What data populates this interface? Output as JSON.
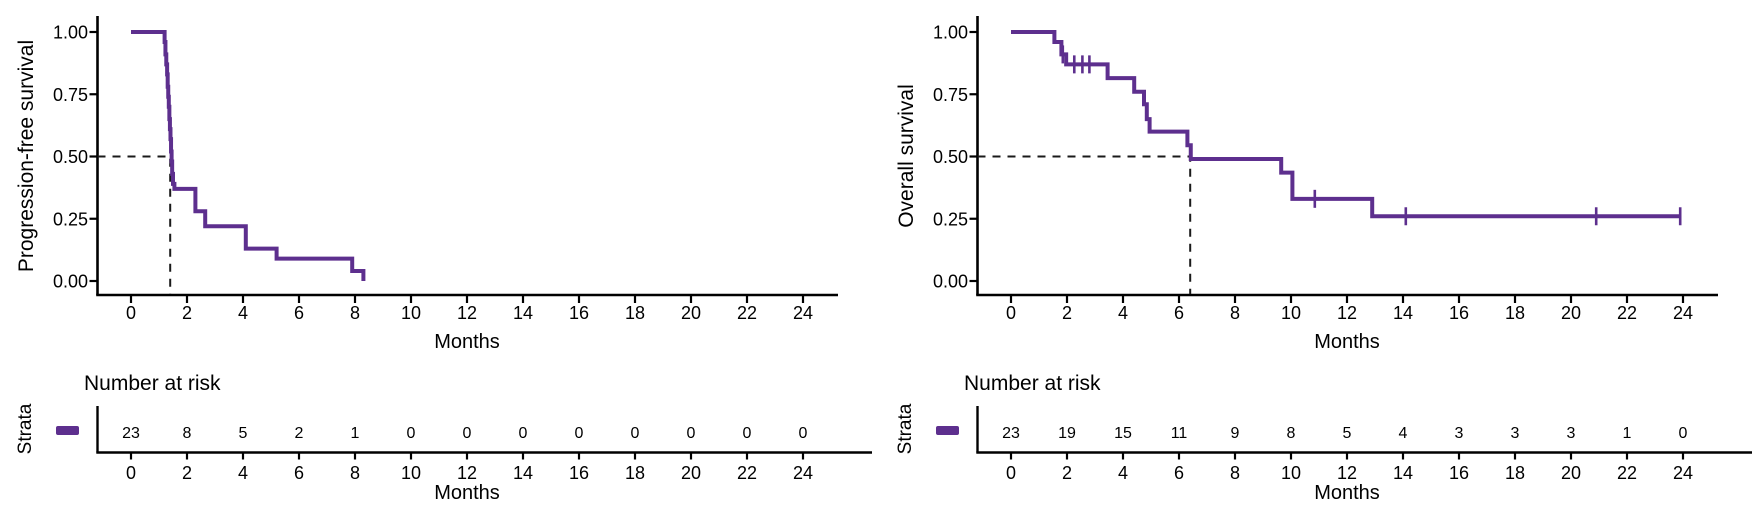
{
  "figure": {
    "background": "#ffffff",
    "curve_color": "#5D2F8E",
    "axis_color": "#000000",
    "dashed_guide_color": "#1a1a1a"
  },
  "chart_data": [
    {
      "type": "line",
      "subtype": "kaplan-meier-step",
      "ylabel": "Progression-free survival",
      "xlabel": "Months",
      "xlim": [
        0,
        25
      ],
      "ylim": [
        0,
        1
      ],
      "grid": false,
      "legend_position": "none",
      "x_ticks": [
        0,
        2,
        4,
        6,
        8,
        10,
        12,
        14,
        16,
        18,
        20,
        22,
        24
      ],
      "y_ticks": [
        0,
        0.25,
        0.5,
        0.75,
        1
      ],
      "y_tick_labels": [
        "0.00",
        "0.25",
        "0.50",
        "0.75",
        "1.00"
      ],
      "median_guide": {
        "time": 1.4,
        "survival": 0.5
      },
      "series": [
        {
          "color": "#5D2F8E",
          "steps": [
            [
              0,
              1.0
            ],
            [
              1.2,
              0.96
            ],
            [
              1.23,
              0.91
            ],
            [
              1.26,
              0.87
            ],
            [
              1.29,
              0.83
            ],
            [
              1.31,
              0.78
            ],
            [
              1.33,
              0.74
            ],
            [
              1.35,
              0.7
            ],
            [
              1.37,
              0.65
            ],
            [
              1.39,
              0.61
            ],
            [
              1.41,
              0.57
            ],
            [
              1.43,
              0.52
            ],
            [
              1.45,
              0.48
            ],
            [
              1.47,
              0.43
            ],
            [
              1.5,
              0.39
            ],
            [
              1.55,
              0.37
            ],
            [
              2.3,
              0.28
            ],
            [
              2.65,
              0.22
            ],
            [
              4.1,
              0.13
            ],
            [
              5.2,
              0.09
            ],
            [
              7.9,
              0.04
            ],
            [
              8.3,
              0.0
            ]
          ],
          "censor_marks": []
        }
      ],
      "risk_table": {
        "title": "Number at risk",
        "strata_label": "Strata",
        "xlabel": "Months",
        "times": [
          0,
          2,
          4,
          6,
          8,
          10,
          12,
          14,
          16,
          18,
          20,
          22,
          24
        ],
        "counts": [
          23,
          8,
          5,
          2,
          1,
          0,
          0,
          0,
          0,
          0,
          0,
          0,
          0
        ]
      }
    },
    {
      "type": "line",
      "subtype": "kaplan-meier-step",
      "ylabel": "Overall survival",
      "xlabel": "Months",
      "xlim": [
        0,
        25
      ],
      "ylim": [
        0,
        1
      ],
      "grid": false,
      "legend_position": "none",
      "x_ticks": [
        0,
        2,
        4,
        6,
        8,
        10,
        12,
        14,
        16,
        18,
        20,
        22,
        24
      ],
      "y_ticks": [
        0,
        0.25,
        0.5,
        0.75,
        1
      ],
      "y_tick_labels": [
        "0.00",
        "0.25",
        "0.50",
        "0.75",
        "1.00"
      ],
      "median_guide": {
        "time": 6.4,
        "survival": 0.5
      },
      "series": [
        {
          "color": "#5D2F8E",
          "steps": [
            [
              0,
              1.0
            ],
            [
              1.55,
              0.96
            ],
            [
              1.8,
              0.91
            ],
            [
              1.97,
              0.87
            ],
            [
              3.45,
              0.815
            ],
            [
              4.4,
              0.76
            ],
            [
              4.75,
              0.71
            ],
            [
              4.85,
              0.65
            ],
            [
              4.95,
              0.6
            ],
            [
              6.3,
              0.545
            ],
            [
              6.42,
              0.49
            ],
            [
              9.65,
              0.435
            ],
            [
              10.05,
              0.33
            ],
            [
              12.9,
              0.26
            ],
            [
              23.9,
              0.26
            ]
          ],
          "censor_marks": [
            [
              1.85,
              0.91
            ],
            [
              2.26,
              0.87
            ],
            [
              2.55,
              0.87
            ],
            [
              2.8,
              0.87
            ],
            [
              10.85,
              0.33
            ],
            [
              14.1,
              0.26
            ],
            [
              20.9,
              0.26
            ],
            [
              23.9,
              0.26
            ]
          ]
        }
      ],
      "risk_table": {
        "title": "Number at risk",
        "strata_label": "Strata",
        "xlabel": "Months",
        "times": [
          0,
          2,
          4,
          6,
          8,
          10,
          12,
          14,
          16,
          18,
          20,
          22,
          24
        ],
        "counts": [
          23,
          19,
          15,
          11,
          9,
          8,
          5,
          4,
          3,
          3,
          3,
          1,
          0
        ]
      }
    }
  ]
}
